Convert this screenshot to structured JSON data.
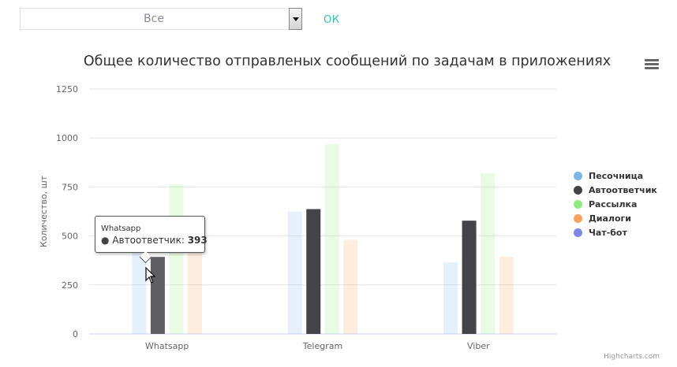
{
  "filter": {
    "selected": "Все",
    "ok_label": "ОК"
  },
  "menu": {
    "icon": "hamburger-menu-icon"
  },
  "chart_data": {
    "type": "bar",
    "title": "Общее количество отправленых сообщений по задачам в приложениях",
    "ylabel": "Количество, шт",
    "xlabel": "",
    "ylim": [
      0,
      1250
    ],
    "yticks": [
      0,
      250,
      500,
      750,
      1000,
      1250
    ],
    "categories": [
      "Whatsapp",
      "Telegram",
      "Viber"
    ],
    "grid": true,
    "legend_position": "right",
    "series": [
      {
        "name": "Песочница",
        "color": "#7cb5ec",
        "values": [
          430,
          625,
          365
        ]
      },
      {
        "name": "Автоответчик",
        "color": "#434348",
        "values": [
          393,
          637,
          578
        ]
      },
      {
        "name": "Рассылка",
        "color": "#90ed7d",
        "values": [
          765,
          968,
          820
        ]
      },
      {
        "name": "Диалоги",
        "color": "#f7a35c",
        "values": [
          425,
          480,
          393
        ]
      },
      {
        "name": "Чат-бот",
        "color": "#8085e9",
        "values": [
          0,
          0,
          0
        ]
      }
    ],
    "highlighted": {
      "series": 1,
      "category": 0
    }
  },
  "tooltip": {
    "title": "Whatsapp",
    "bullet": "●",
    "series": "Автоответчик",
    "value": "393"
  },
  "credits": "Highcharts.com"
}
